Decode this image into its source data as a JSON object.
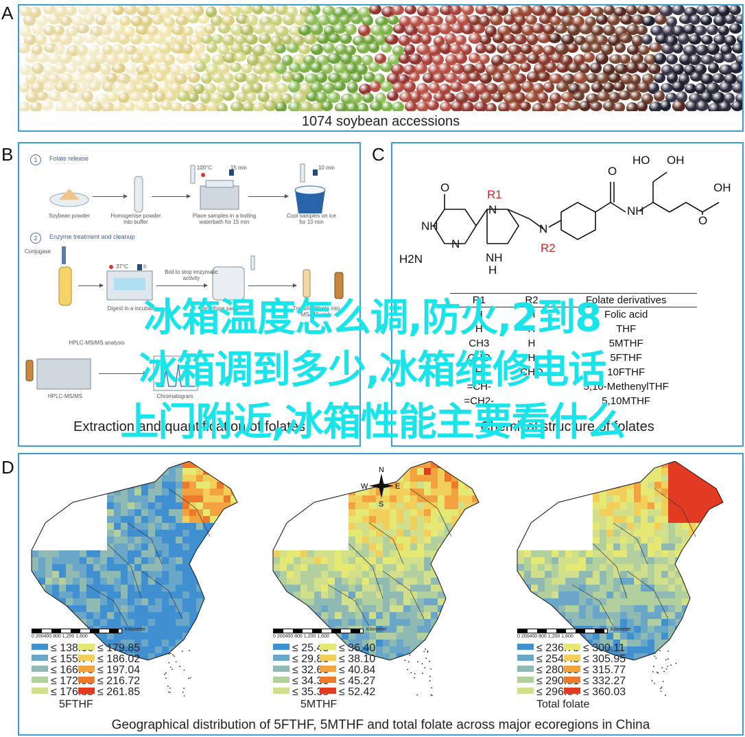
{
  "panel_a": {
    "letter": "A",
    "caption": "1074 soybean accessions"
  },
  "panel_b": {
    "letter": "B",
    "caption": "Extraction and quantification of folates",
    "step1": {
      "num": "1",
      "title": "Folate release"
    },
    "step2": {
      "num": "2",
      "title": "Enzyme treatment and cleanup"
    },
    "labels": {
      "soybean_powder": "Soybean powder",
      "homogenize": "Homogenise powder into buffer",
      "boiling": "Place samples in a boiling waterbath for 15 min",
      "cool": "Cool samples on ice for 10 min",
      "conjugase": "Conjugase",
      "digest": "Digest in a incubator",
      "boil_stop": "Boil to stop enzymatic activity",
      "centrifuge": "Centrifuge samples",
      "transfer": "Transfer filtrate into MS/MS vials",
      "hplc": "HPLC-MS/MS analysis",
      "hplc_short": "HPLC-MS/MS",
      "chromatogram": "Chromatogram",
      "temp1": "100°C",
      "time1": "15 min",
      "time2": "10 min",
      "temp2": "37°C",
      "time3": "4 h"
    }
  },
  "panel_c": {
    "letter": "C",
    "caption": "Chemical structure of folates",
    "atoms": {
      "ho": "HO",
      "oh": "OH",
      "o": "O",
      "n": "N",
      "nh": "NH",
      "h2n": "H2N",
      "h": "H",
      "r1": "R1",
      "r2": "R2"
    },
    "table": {
      "headers": [
        "R1",
        "R2",
        "Folate derivatives"
      ],
      "rows": [
        [
          "H",
          "H",
          "Folic acid"
        ],
        [
          "H",
          "H",
          "THF"
        ],
        [
          "CH3",
          "H",
          "5MTHF"
        ],
        [
          "CHO",
          "H",
          "5FTHF"
        ],
        [
          "H",
          "CHO",
          "10FTHF"
        ],
        [
          "=CH-",
          "",
          "5,10-MethenylTHF"
        ],
        [
          "=CH2-",
          "",
          "5,10MTHF"
        ]
      ]
    }
  },
  "panel_d": {
    "letter": "D",
    "caption": "Geographical distribution of 5FTHF, 5MTHF and total folate across major ecoregions in China",
    "compass": {
      "n": "N",
      "s": "S",
      "e": "E",
      "w": "W"
    },
    "scale": {
      "ticks": "0  200400    800    1,200    1,600",
      "unit": "Kilometer"
    },
    "maps": [
      {
        "title": "5FTHF",
        "legend": [
          {
            "label": "≤ 138.06",
            "color": "#3f8fd1"
          },
          {
            "label": "≤ 179.85",
            "color": "#e6e874"
          },
          {
            "label": "≤ 155.74",
            "color": "#6aa6c8"
          },
          {
            "label": "≤ 186.02",
            "color": "#f2cf5a"
          },
          {
            "label": "≤ 166.76",
            "color": "#8fbab4"
          },
          {
            "label": "≤ 197.04",
            "color": "#f2a23f"
          },
          {
            "label": "≤ 172.93",
            "color": "#b2cf9e"
          },
          {
            "label": "≤ 216.72",
            "color": "#ec7a2c"
          },
          {
            "label": "≤ 176.35",
            "color": "#d1de8a"
          },
          {
            "label": "≤ 261.85",
            "color": "#e23b24"
          }
        ]
      },
      {
        "title": "5MTHF",
        "legend": [
          {
            "label": "≤ 25.43",
            "color": "#3f8fd1"
          },
          {
            "label": "≤ 36.40",
            "color": "#e6e874"
          },
          {
            "label": "≤ 29.86",
            "color": "#6aa6c8"
          },
          {
            "label": "≤ 38.10",
            "color": "#f2cf5a"
          },
          {
            "label": "≤ 32.60",
            "color": "#8fbab4"
          },
          {
            "label": "≤ 40.84",
            "color": "#f2a23f"
          },
          {
            "label": "≤ 34.30",
            "color": "#b2cf9e"
          },
          {
            "label": "≤ 45.27",
            "color": "#ec7a2c"
          },
          {
            "label": "≤ 35.35",
            "color": "#d1de8a"
          },
          {
            "label": "≤ 52.42",
            "color": "#e23b24"
          }
        ]
      },
      {
        "title": "Total folate",
        "legend": [
          {
            "label": "≤ 236.73",
            "color": "#3f8fd1"
          },
          {
            "label": "≤ 300.11",
            "color": "#e6e874"
          },
          {
            "label": "≤ 254.48",
            "color": "#6aa6c8"
          },
          {
            "label": "≤ 305.95",
            "color": "#f2cf5a"
          },
          {
            "label": "≤ 280.99",
            "color": "#8fbab4"
          },
          {
            "label": "≤ 315.77",
            "color": "#f2a23f"
          },
          {
            "label": "≤ 290.81",
            "color": "#b2cf9e"
          },
          {
            "label": "≤ 332.27",
            "color": "#ec7a2c"
          },
          {
            "label": "≤ 296.64",
            "color": "#d1de8a"
          },
          {
            "label": "≤ 360.03",
            "color": "#e23b24"
          }
        ]
      }
    ]
  },
  "overlay": {
    "line1": "冰箱温度怎么调,防火,2到8",
    "line2": "冰箱调到多少,冰箱维修电话",
    "line3": "上门附近,冰箱性能主要看什么",
    "color": "#19e4ea"
  }
}
